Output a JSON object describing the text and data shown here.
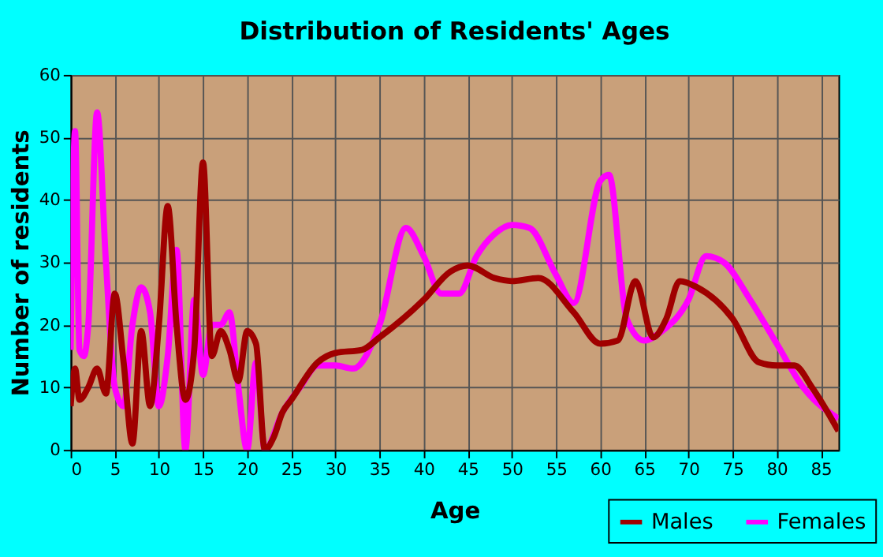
{
  "chart_data": {
    "type": "line",
    "title": "Distribution of Residents' Ages",
    "xlabel": "Age",
    "ylabel": "Number of residents",
    "xlim": [
      0,
      87
    ],
    "xticks": [
      0,
      5,
      10,
      15,
      20,
      25,
      30,
      35,
      40,
      45,
      50,
      55,
      60,
      65,
      70,
      75,
      80,
      85
    ],
    "ylim": [
      0,
      60
    ],
    "yticks": [
      0,
      10,
      20,
      30,
      40,
      50,
      60
    ],
    "grid": true,
    "legend": "bottom right",
    "line_style": "solid",
    "series": [
      {
        "name": "Males",
        "color": "#a00000",
        "x": [
          0,
          0.5,
          1,
          2,
          3,
          4,
          5,
          6,
          7,
          8,
          9,
          10,
          11,
          12,
          13,
          14,
          15,
          16,
          17,
          18,
          19,
          20,
          21,
          22,
          23,
          24,
          25,
          28,
          30,
          33,
          35,
          40,
          43,
          45,
          48,
          50,
          53,
          57,
          60,
          62,
          64,
          66,
          67.5,
          69,
          71,
          75,
          78,
          80,
          82,
          84,
          87
        ],
        "values": [
          7,
          13,
          8,
          10,
          13,
          9,
          25,
          14,
          1,
          19,
          7,
          20,
          39,
          20,
          8,
          16,
          46,
          15,
          19,
          16,
          11,
          19,
          17,
          0,
          2,
          6,
          8,
          14,
          15.5,
          16,
          18,
          24,
          28.5,
          29.5,
          27.5,
          27,
          27.5,
          22,
          17,
          17.5,
          27,
          18,
          21,
          27,
          26,
          21,
          14,
          13.5,
          13.5,
          10,
          3
        ]
      },
      {
        "name": "Females",
        "color": "#ff00ff",
        "x": [
          0,
          0.5,
          1,
          1.5,
          2,
          3,
          4,
          5,
          6,
          7,
          8,
          9,
          10,
          11,
          12,
          13,
          14,
          15,
          16,
          17,
          18,
          19,
          20,
          21,
          22,
          24,
          26,
          28,
          30,
          32,
          35,
          38,
          40,
          42,
          44,
          46,
          48,
          50,
          52,
          55,
          57,
          60,
          61,
          63,
          65,
          67,
          70,
          72,
          74,
          77,
          80,
          83,
          87
        ],
        "values": [
          16,
          51,
          16,
          15,
          20,
          54,
          30,
          10,
          7,
          20,
          26,
          22,
          7,
          15,
          32,
          0,
          24,
          12,
          20,
          20,
          22,
          10,
          0,
          14,
          0,
          6,
          10,
          13.5,
          13.5,
          13,
          20,
          35.5,
          31,
          25,
          25,
          31,
          34.5,
          36,
          35.5,
          28,
          23.5,
          43,
          44,
          21,
          17.5,
          19,
          24,
          31,
          30,
          24,
          17,
          10,
          5
        ]
      }
    ]
  }
}
